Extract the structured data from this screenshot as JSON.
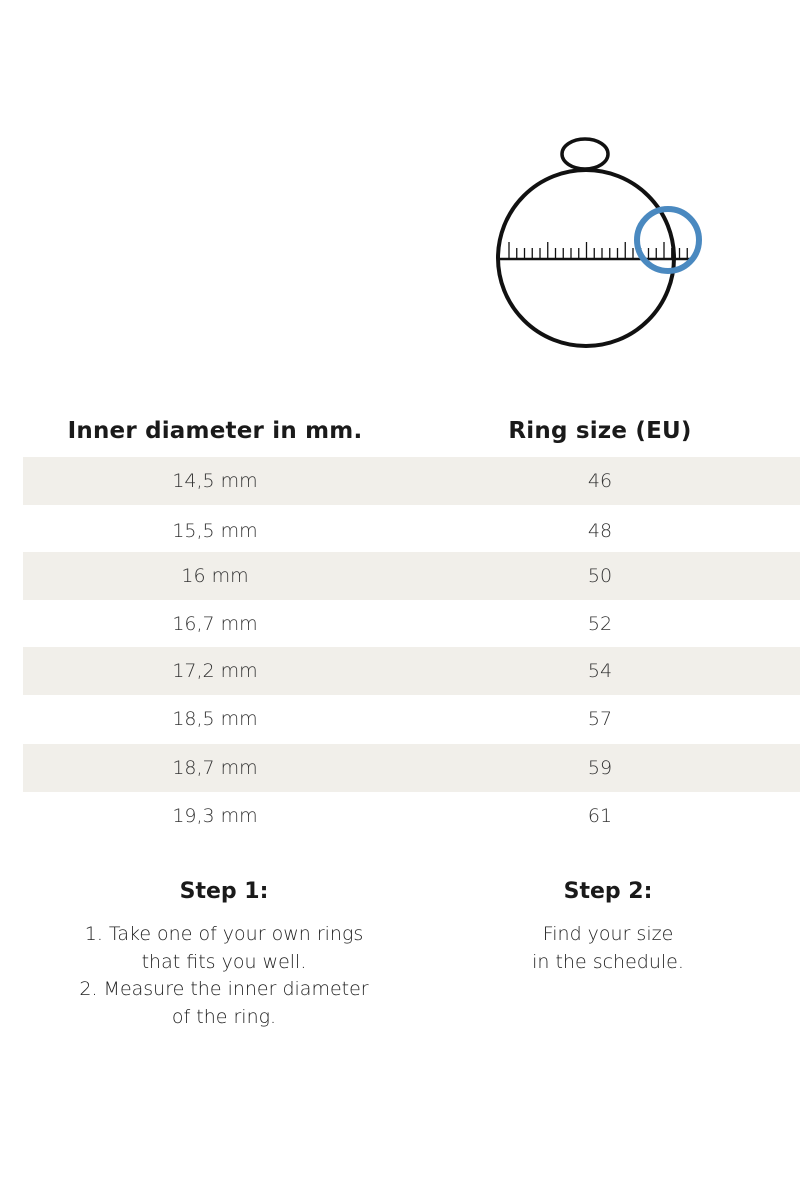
{
  "diagram": {
    "icon": "ring-measure-icon",
    "ring_color": "#4a89c0",
    "outline_color": "#111111"
  },
  "table": {
    "headers": [
      "Inner diameter in mm.",
      "Ring size (EU)"
    ],
    "stripe_color": "#f1efea",
    "rows": [
      [
        "14,5 mm",
        "46"
      ],
      [
        "15,5 mm",
        "48"
      ],
      [
        "16 mm",
        "50"
      ],
      [
        "16,7 mm",
        "52"
      ],
      [
        "17,2 mm",
        "54"
      ],
      [
        "18,5 mm",
        "57"
      ],
      [
        "18,7 mm",
        "59"
      ],
      [
        "19,3 mm",
        "61"
      ]
    ]
  },
  "steps": [
    {
      "title": "Step 1:",
      "lines": [
        "1. Take one of your own rings",
        "that fits you well.",
        "2. Measure the inner diameter",
        "of the ring."
      ]
    },
    {
      "title": "Step 2:",
      "lines": [
        "Find your size",
        "in the schedule."
      ]
    }
  ]
}
